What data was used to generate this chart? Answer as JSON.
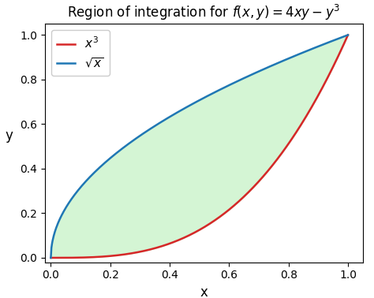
{
  "title": "Region of integration for $f(x, y) = 4xy - y^3$",
  "xlabel": "x",
  "ylabel": "y",
  "xlim": [
    -0.02,
    1.05
  ],
  "ylim": [
    -0.02,
    1.05
  ],
  "n_points": 500,
  "curve1_label": "$x^3$",
  "curve2_label": "$\\sqrt{x}$",
  "curve1_color": "#d62728",
  "curve2_color": "#1f77b4",
  "fill_color": "#d4f5d4",
  "fill_alpha": 1.0,
  "curve_linewidth": 1.8,
  "title_fontsize": 12,
  "axis_label_fontsize": 12,
  "legend_fontsize": 11,
  "background_color": "#ffffff",
  "tick_step": 0.2,
  "tick_fontsize": 10,
  "figsize": [
    4.74,
    3.78
  ],
  "dpi": 100
}
